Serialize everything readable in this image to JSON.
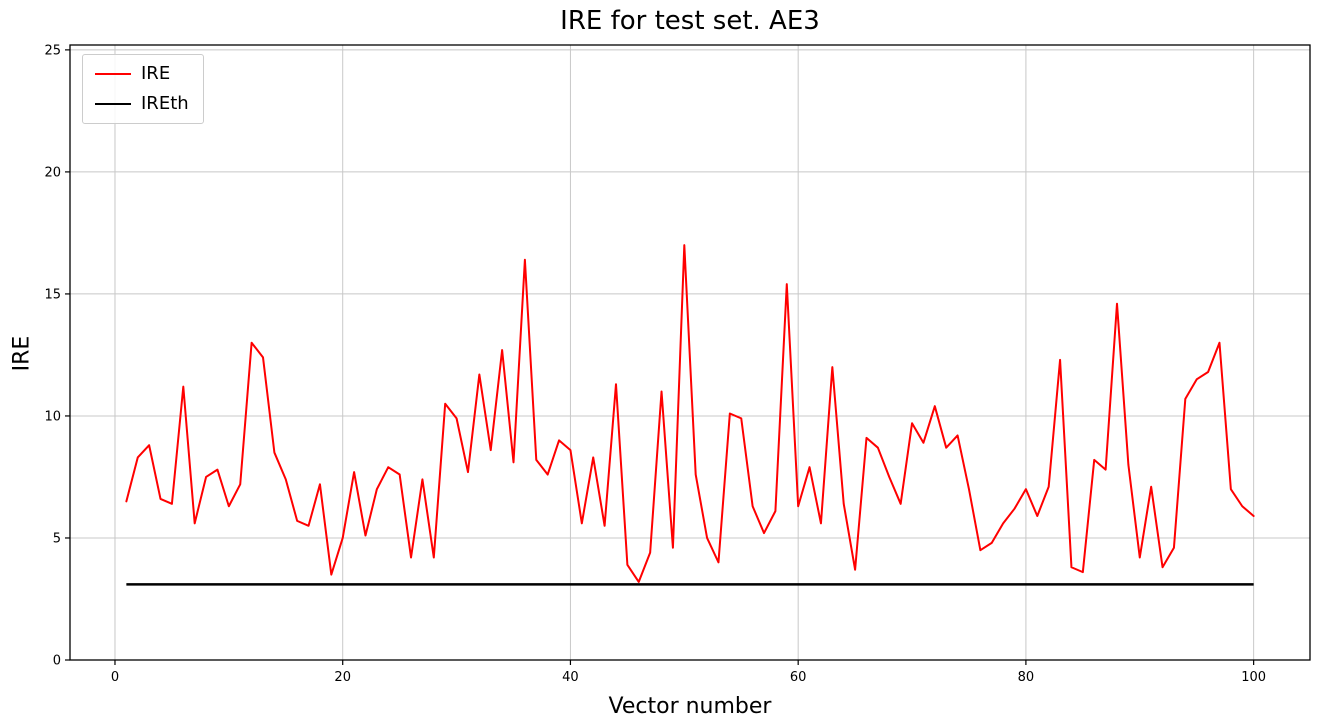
{
  "title": "IRE for test set. AE3",
  "chart_data": {
    "type": "line",
    "title": "IRE for test set. AE3",
    "xlabel": "Vector number",
    "ylabel": "IRE",
    "xlim": [
      -3.95,
      104.95
    ],
    "ylim": [
      0,
      25.2
    ],
    "xticks": [
      0,
      20,
      40,
      60,
      80,
      100
    ],
    "yticks": [
      0,
      5,
      10,
      15,
      20,
      25
    ],
    "grid": true,
    "grid_color": "#c8c8c8",
    "legend_position": "upper left",
    "series": [
      {
        "name": "IRE",
        "color": "#ff0000",
        "line_width": 2,
        "x_start": 1,
        "values": [
          6.5,
          8.3,
          8.8,
          6.6,
          6.4,
          11.2,
          5.6,
          7.5,
          7.8,
          6.3,
          7.2,
          13.0,
          12.4,
          8.5,
          7.4,
          5.7,
          5.5,
          7.2,
          3.5,
          5.0,
          7.7,
          5.1,
          7.0,
          7.9,
          7.6,
          4.2,
          7.4,
          4.2,
          10.5,
          9.9,
          7.7,
          11.7,
          8.6,
          12.7,
          8.1,
          16.4,
          8.2,
          7.6,
          9.0,
          8.6,
          5.6,
          8.3,
          5.5,
          11.3,
          3.9,
          3.2,
          4.4,
          11.0,
          4.6,
          17.0,
          7.6,
          5.0,
          4.0,
          10.1,
          9.9,
          6.3,
          5.2,
          6.1,
          15.4,
          6.3,
          7.9,
          5.6,
          12.0,
          6.4,
          3.7,
          9.1,
          8.7,
          7.5,
          6.4,
          9.7,
          8.9,
          10.4,
          8.7,
          9.2,
          7.0,
          4.5,
          4.8,
          5.6,
          6.2,
          7.0,
          5.9,
          7.1,
          12.3,
          3.8,
          3.6,
          8.2,
          7.8,
          14.6,
          8.0,
          4.2,
          7.1,
          3.8,
          4.6,
          10.7,
          11.5,
          11.8,
          13.0,
          7.0,
          6.3,
          5.9
        ]
      },
      {
        "name": "IREth",
        "color": "#000000",
        "line_width": 2.5,
        "constant_value": 3.1,
        "x_range": [
          1,
          100
        ]
      }
    ]
  }
}
